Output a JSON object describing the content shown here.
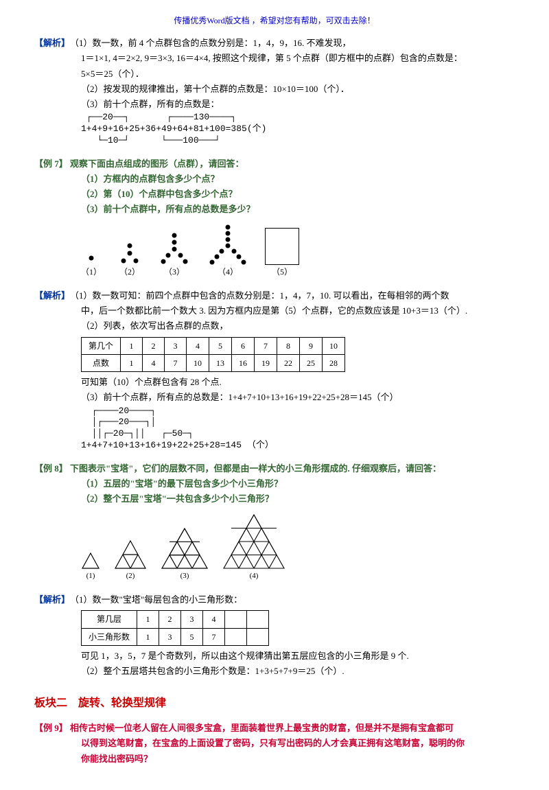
{
  "header": "传播优秀Word版文档 ，希望对您有帮助，可双击去除！",
  "ex6sol": {
    "tag": "【解析】",
    "l1": "（1）数一数，前 4 个点群包含的点数分别是：1，4，9，16. 不难发现，",
    "l2": "1＝1×1, 4＝2×2, 9＝3×3, 16＝4×4, 按照这个规律，第 5 个点群（即方框中的点群）包含的点数是：",
    "l3": "5×5＝25（个）．",
    "l4": "（2）按发现的规律推出，第十个点群的点数是：10×10＝100（个）．",
    "l5": "（3）前十个点群，所有的点数是：",
    "formula_top": " ┌──20──┐       ┌────130────┐",
    "formula_main": "1+4+9+16+25+36+49+64+81+100=385(个)",
    "formula_bot": "   └─10─┘      └───100───┘"
  },
  "ex7": {
    "tag": "【例 7】",
    "q0": "观察下面由点组成的图形（点群），请回答：",
    "q1": "（1）方框内的点群包含多少个点？",
    "q2": "（2）第（10）个点群中包含多少个点？",
    "q3": "（3）前十个点群中，所有点的总数是多少？",
    "labels": [
      "（1）",
      "（2）",
      "（3）",
      "（4）",
      "（5）"
    ]
  },
  "ex7sol": {
    "tag": "【解析】",
    "l1": "（1）数一数可知：前四个点群中包含的点数分别是：1，4，7，10. 可以看出，在每相邻的两个数",
    "l2": "中，后一个数都比前一个数大 3. 因为方框内应是第（5）个点群，它的点数应该是 10+3＝13（个）.",
    "l3": "（2）列表，依次写出各点群的点数，",
    "table_h": [
      "第几个",
      "1",
      "2",
      "3",
      "4",
      "5",
      "6",
      "7",
      "8",
      "9",
      "10"
    ],
    "table_r": [
      "点数",
      "1",
      "4",
      "7",
      "10",
      "13",
      "16",
      "19",
      "22",
      "25",
      "28"
    ],
    "l4": "可知第（10）个点群包含有 28 个点.",
    "l5": "（3）前十个点群，所有点的总数是：1+4+7+10+13+16+19+22+25+28＝145（个）",
    "f_top1": "  ┌────20────┐",
    "f_top2": "  │┌───20───┐│",
    "f_top3": "  ││┌─20─┐││   ┌─50─┐",
    "f_main": "1+4+7+10+13+16+19+22+25+28=145 （个）",
    "f_bot": ""
  },
  "ex8": {
    "tag": "【例 8】",
    "q0": "下图表示\"宝塔\"，它们的层数不同，但都是由一样大的小三角形摆成的. 仔细观察后，请回答：",
    "q1": "（1）五层的\"宝塔\"的最下层包含多少个小三角形？",
    "q2": "（2）整个五层\"宝塔\"一共包含多少个小三角形？",
    "labels": [
      "(1)",
      "(2)",
      "(3)",
      "(4)"
    ]
  },
  "ex8sol": {
    "tag": "【解析】",
    "l1": "（1）数一数\"宝塔\"每层包含的小三角形数：",
    "table_h": [
      "第几层",
      "1",
      "2",
      "3",
      "4",
      "",
      ""
    ],
    "table_r": [
      "小三角形数",
      "1",
      "3",
      "5",
      "7",
      "",
      ""
    ],
    "l2": "可见 1，3，5，7 是个奇数列，所以由这个规律猜出第五层应包含的小三角形是 9 个.",
    "l3": "（2）整个五层塔共包含的小三角形个数是：1+3+5+7+9＝25（个）."
  },
  "section2": "板块二　旋转、轮换型规律",
  "ex9": {
    "tag": "【例 9】",
    "q0": "相传古时候一位老人留在人间很多宝盒，里面装着世界上最宝贵的财富，但是并不是拥有宝盒都可",
    "q1": "以得到这笔财富，在宝盒的上面设置了密码，只有写出密码的人才会真正拥有这笔财富，聪明的你",
    "q2": "你能找出密码吗？"
  },
  "colors": {
    "blue": "#003399",
    "red": "#cc0033",
    "green": "#336633"
  }
}
